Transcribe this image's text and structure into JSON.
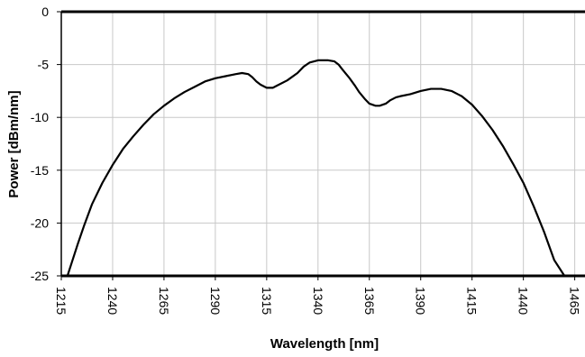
{
  "chart_data": {
    "type": "line",
    "title": "",
    "xlabel": "Wavelength [nm]",
    "ylabel": "Power [dBm/nm]",
    "xlim": [
      1215,
      1470
    ],
    "ylim": [
      -25,
      0
    ],
    "xticks": [
      1215,
      1240,
      1265,
      1290,
      1315,
      1340,
      1365,
      1390,
      1415,
      1440,
      1465
    ],
    "yticks": [
      0,
      -5,
      -10,
      -15,
      -20,
      -25
    ],
    "grid": true,
    "legend": "none",
    "line_color": "#000000",
    "series": [
      {
        "x": [
          1218,
          1220,
          1223,
          1226,
          1230,
          1235,
          1240,
          1245,
          1250,
          1255,
          1260,
          1265,
          1270,
          1275,
          1280,
          1285,
          1290,
          1295,
          1300,
          1303,
          1306,
          1308,
          1310,
          1312,
          1315,
          1318,
          1320,
          1325,
          1330,
          1333,
          1336,
          1340,
          1345,
          1348,
          1350,
          1352,
          1355,
          1358,
          1360,
          1363,
          1365,
          1368,
          1370,
          1373,
          1375,
          1378,
          1380,
          1385,
          1390,
          1395,
          1400,
          1405,
          1410,
          1415,
          1420,
          1425,
          1430,
          1435,
          1440,
          1445,
          1450,
          1455,
          1460,
          1463
        ],
        "y": [
          -25.0,
          -23.8,
          -22.0,
          -20.3,
          -18.2,
          -16.2,
          -14.5,
          -13.0,
          -11.8,
          -10.7,
          -9.7,
          -8.9,
          -8.2,
          -7.6,
          -7.1,
          -6.6,
          -6.3,
          -6.1,
          -5.9,
          -5.8,
          -5.9,
          -6.2,
          -6.6,
          -6.9,
          -7.2,
          -7.2,
          -7.0,
          -6.5,
          -5.8,
          -5.2,
          -4.8,
          -4.6,
          -4.6,
          -4.7,
          -5.0,
          -5.5,
          -6.2,
          -7.0,
          -7.6,
          -8.3,
          -8.7,
          -8.9,
          -8.9,
          -8.7,
          -8.4,
          -8.1,
          -8.0,
          -7.8,
          -7.5,
          -7.3,
          -7.3,
          -7.5,
          -8.0,
          -8.8,
          -9.9,
          -11.2,
          -12.7,
          -14.4,
          -16.2,
          -18.4,
          -20.8,
          -23.5,
          -25.0,
          -25.0
        ]
      }
    ]
  }
}
